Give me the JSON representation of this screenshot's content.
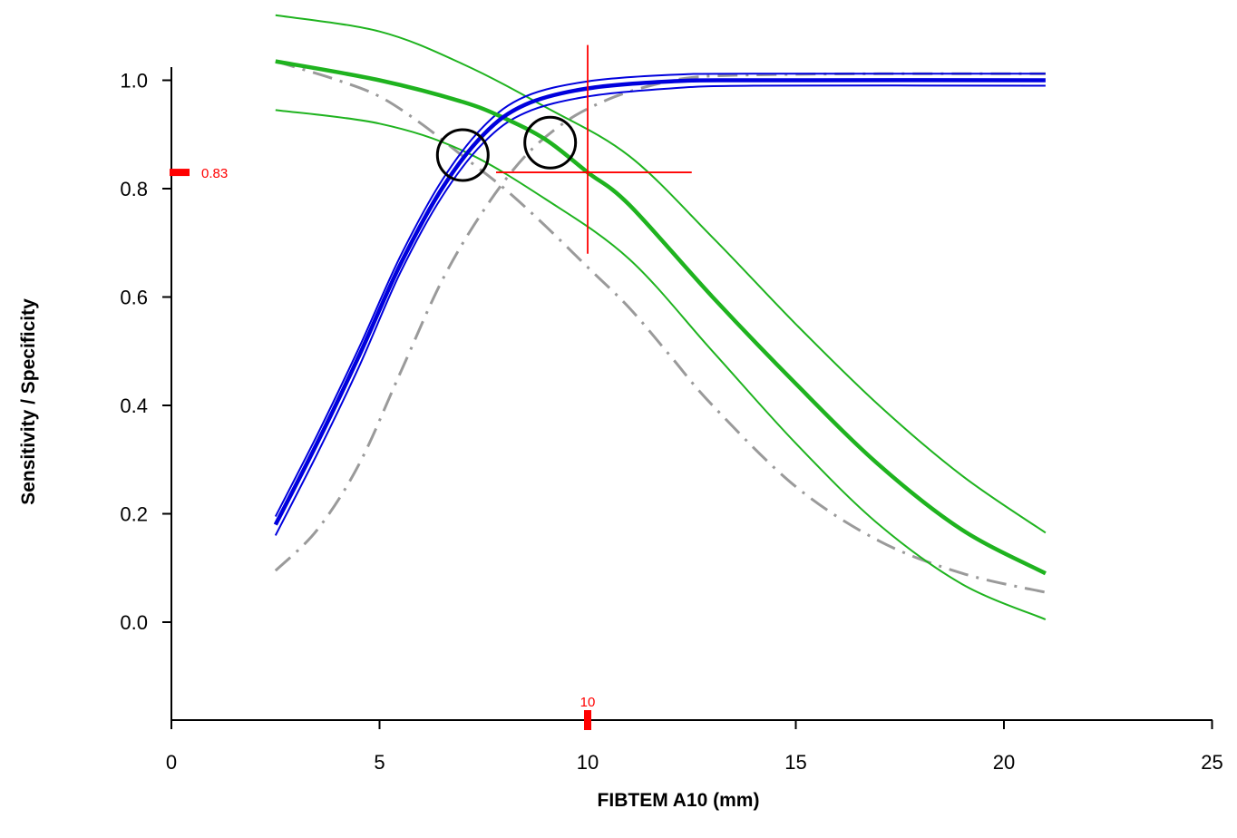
{
  "chart_data": {
    "type": "line",
    "xlabel": "FIBTEM A10 (mm)",
    "ylabel": "Sensitivity / Specificity",
    "xlim": [
      0,
      25
    ],
    "ylim": [
      -0.18,
      1.0
    ],
    "x_ticks": [
      "0",
      "5",
      "10",
      "15",
      "20",
      "25"
    ],
    "y_ticks": [
      "0.0",
      "0.2",
      "0.4",
      "0.6",
      "0.8",
      "1.0"
    ],
    "colors": {
      "specificity": "#0000dd",
      "sensitivity": "#1fb31f",
      "reference": "#9a9a9a",
      "marker": "#ff0000",
      "circle": "#000000"
    },
    "series": [
      {
        "color": "#1fb31f",
        "style": "thick",
        "x": [
          2.5,
          5,
          7,
          8,
          9,
          10,
          11,
          13,
          15,
          17,
          19,
          21
        ],
        "y": [
          1.035,
          1.0,
          0.96,
          0.93,
          0.89,
          0.83,
          0.77,
          0.6,
          0.44,
          0.29,
          0.17,
          0.09
        ]
      },
      {
        "color": "#1fb31f",
        "style": "thin",
        "x": [
          2.5,
          5,
          7,
          9,
          11,
          13,
          15,
          17,
          19,
          21
        ],
        "y": [
          1.12,
          1.09,
          1.03,
          0.95,
          0.86,
          0.71,
          0.55,
          0.4,
          0.27,
          0.165
        ]
      },
      {
        "color": "#1fb31f",
        "style": "thin",
        "x": [
          2.5,
          5,
          7,
          9,
          11,
          13,
          15,
          17,
          19,
          21
        ],
        "y": [
          0.945,
          0.92,
          0.87,
          0.78,
          0.67,
          0.5,
          0.33,
          0.18,
          0.07,
          0.005
        ]
      },
      {
        "color": "#0000dd",
        "style": "thick",
        "x": [
          2.5,
          3.5,
          4.5,
          5.5,
          6.5,
          7.5,
          8.5,
          10,
          12,
          14,
          21
        ],
        "y": [
          0.18,
          0.33,
          0.49,
          0.66,
          0.8,
          0.9,
          0.955,
          0.985,
          0.998,
          1.0,
          1.0
        ]
      },
      {
        "color": "#0000dd",
        "style": "thin",
        "x": [
          2.5,
          3.5,
          4.5,
          5.5,
          6.5,
          7.5,
          8.5,
          10,
          12,
          14,
          21
        ],
        "y": [
          0.195,
          0.345,
          0.505,
          0.675,
          0.815,
          0.915,
          0.97,
          0.998,
          1.01,
          1.012,
          1.012
        ]
      },
      {
        "color": "#0000dd",
        "style": "thin",
        "x": [
          2.5,
          3.5,
          4.5,
          5.5,
          6.5,
          7.5,
          8.5,
          10,
          12,
          14,
          21
        ],
        "y": [
          0.16,
          0.31,
          0.47,
          0.645,
          0.785,
          0.885,
          0.94,
          0.97,
          0.985,
          0.99,
          0.99
        ]
      },
      {
        "color": "#9a9a9a",
        "style": "dashdot",
        "x": [
          2.5,
          4,
          5,
          6,
          7,
          8,
          9,
          10,
          11,
          12,
          13,
          15,
          17,
          19,
          21
        ],
        "y": [
          1.035,
          1.0,
          0.97,
          0.92,
          0.86,
          0.8,
          0.73,
          0.655,
          0.58,
          0.49,
          0.4,
          0.25,
          0.15,
          0.09,
          0.055
        ]
      },
      {
        "color": "#9a9a9a",
        "style": "dashdot",
        "x": [
          2.5,
          3.5,
          4.5,
          5.5,
          6.5,
          7.5,
          8.5,
          9.5,
          10.5,
          11.5,
          12.5,
          14,
          17,
          21
        ],
        "y": [
          0.095,
          0.17,
          0.29,
          0.46,
          0.63,
          0.76,
          0.86,
          0.925,
          0.965,
          0.99,
          1.005,
          1.01,
          1.012,
          1.012
        ]
      }
    ],
    "crosshair": {
      "x": 10,
      "y": 0.83,
      "x_range": [
        7.8,
        12.5
      ],
      "y_range": [
        0.68,
        1.065
      ]
    },
    "circles": [
      {
        "x": 7.0,
        "y": 0.862
      },
      {
        "x": 9.1,
        "y": 0.885
      }
    ],
    "x_marker": {
      "value": 10,
      "label": "10"
    },
    "y_marker": {
      "value": 0.83,
      "label": "0.83"
    }
  }
}
